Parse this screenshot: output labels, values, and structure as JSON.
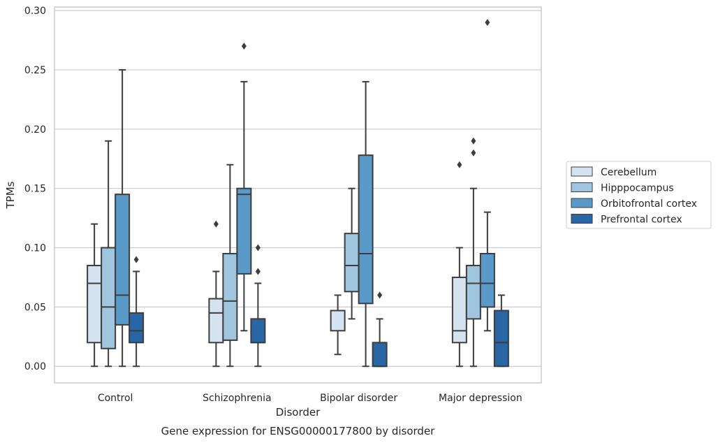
{
  "caption": "Gene expression for ENSG00000177800 by disorder",
  "chart_data": {
    "type": "boxplot",
    "xlabel": "Disorder",
    "ylabel": "TPMs",
    "ylim": [
      -0.014,
      0.303
    ],
    "yticks": [
      "0.00",
      "0.05",
      "0.10",
      "0.15",
      "0.20",
      "0.25",
      "0.30"
    ],
    "ytick_values": [
      0,
      0.05,
      0.1,
      0.15,
      0.2,
      0.25,
      0.3
    ],
    "grid": "horizontal",
    "legend_position": "right",
    "categories": [
      "Control",
      "Schizophrenia",
      "Bipolar disorder",
      "Major depression"
    ],
    "series": [
      {
        "name": "Cerebellum",
        "color": "#d5e3f1",
        "boxes": [
          {
            "low": 0.0,
            "q1": 0.02,
            "median": 0.07,
            "q3": 0.085,
            "high": 0.12,
            "outliers": []
          },
          {
            "low": 0.0,
            "q1": 0.02,
            "median": 0.045,
            "q3": 0.057,
            "high": 0.08,
            "outliers": [
              0.12
            ]
          },
          {
            "low": 0.01,
            "q1": 0.03,
            "median": 0.047,
            "q3": 0.047,
            "high": 0.06,
            "outliers": []
          },
          {
            "low": 0.0,
            "q1": 0.02,
            "median": 0.03,
            "q3": 0.075,
            "high": 0.1,
            "outliers": [
              0.17
            ]
          }
        ]
      },
      {
        "name": "Hipppocampus",
        "color": "#9fc5df",
        "boxes": [
          {
            "low": 0.0,
            "q1": 0.015,
            "median": 0.05,
            "q3": 0.1,
            "high": 0.19,
            "outliers": []
          },
          {
            "low": 0.0,
            "q1": 0.022,
            "median": 0.055,
            "q3": 0.095,
            "high": 0.17,
            "outliers": []
          },
          {
            "low": 0.04,
            "q1": 0.063,
            "median": 0.085,
            "q3": 0.112,
            "high": 0.15,
            "outliers": []
          },
          {
            "low": 0.0,
            "q1": 0.04,
            "median": 0.07,
            "q3": 0.085,
            "high": 0.15,
            "outliers": [
              0.18,
              0.19
            ]
          }
        ]
      },
      {
        "name": "Orbitofrontal cortex",
        "color": "#5a9ac9",
        "boxes": [
          {
            "low": 0.0,
            "q1": 0.035,
            "median": 0.06,
            "q3": 0.145,
            "high": 0.25,
            "outliers": []
          },
          {
            "low": 0.03,
            "q1": 0.078,
            "median": 0.145,
            "q3": 0.15,
            "high": 0.24,
            "outliers": [
              0.27
            ]
          },
          {
            "low": 0.0,
            "q1": 0.053,
            "median": 0.095,
            "q3": 0.178,
            "high": 0.24,
            "outliers": []
          },
          {
            "low": 0.03,
            "q1": 0.05,
            "median": 0.07,
            "q3": 0.095,
            "high": 0.13,
            "outliers": [
              0.29
            ]
          }
        ]
      },
      {
        "name": "Prefrontal cortex",
        "color": "#2866a5",
        "boxes": [
          {
            "low": 0.0,
            "q1": 0.02,
            "median": 0.03,
            "q3": 0.045,
            "high": 0.08,
            "outliers": [
              0.09
            ]
          },
          {
            "low": 0.0,
            "q1": 0.02,
            "median": 0.02,
            "q3": 0.04,
            "high": 0.07,
            "outliers": [
              0.08,
              0.1
            ]
          },
          {
            "low": 0.0,
            "q1": 0.0,
            "median": 0.0,
            "q3": 0.02,
            "high": 0.04,
            "outliers": [
              0.06
            ]
          },
          {
            "low": 0.0,
            "q1": 0.0,
            "median": 0.02,
            "q3": 0.047,
            "high": 0.06,
            "outliers": []
          }
        ]
      }
    ]
  }
}
